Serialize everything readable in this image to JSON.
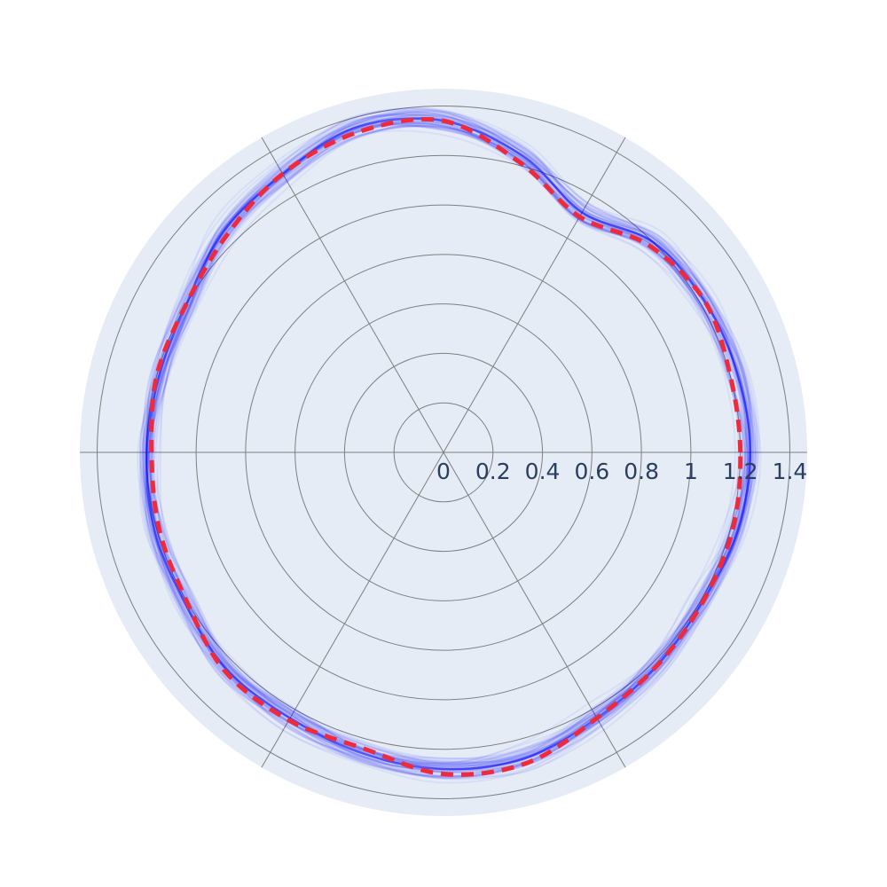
{
  "colors": {
    "polar_background": "#e5ecf6",
    "grid": "#7f7f7f",
    "tick_text": "#2a3f5f",
    "sample_lines": "#0000ff",
    "mean_line": "#ef2a3a"
  },
  "chart_data": {
    "type": "polar-line",
    "radial_axis": {
      "range": [
        0,
        1.47
      ],
      "tick_values": [
        0,
        0.2,
        0.4,
        0.6,
        0.8,
        1,
        1.2,
        1.4
      ],
      "tick_labels": [
        "0",
        "0.2",
        "0.4",
        "0.6",
        "0.8",
        "1",
        "1.2",
        "1.4"
      ],
      "label_angle_deg": 0
    },
    "angular_axis": {
      "spoke_angles_deg": [
        0,
        60,
        120,
        180,
        240,
        300
      ],
      "tick_labels_shown": false
    },
    "grid": true,
    "legend": "none",
    "series": [
      {
        "style": "dashed",
        "color": "#ef2a3a",
        "theta_deg": [
          0,
          15,
          30,
          45,
          60,
          75,
          90,
          105,
          120,
          135,
          150,
          165,
          180,
          195,
          210,
          225,
          240,
          255,
          270,
          285,
          300,
          315,
          330,
          345
        ],
        "r": [
          1.2,
          1.2,
          1.22,
          1.18,
          1.1,
          1.21,
          1.34,
          1.34,
          1.3,
          1.24,
          1.2,
          1.2,
          1.18,
          1.19,
          1.2,
          1.25,
          1.25,
          1.24,
          1.3,
          1.3,
          1.24,
          1.22,
          1.21,
          1.21
        ]
      },
      {
        "style": "solid-ensemble",
        "color": "#0000ff",
        "member_count": 60,
        "theta_deg": [
          0,
          15,
          30,
          45,
          60,
          75,
          90,
          105,
          120,
          135,
          150,
          165,
          180,
          195,
          210,
          225,
          240,
          255,
          270,
          285,
          300,
          315,
          330,
          345
        ],
        "r": [
          1.24,
          1.23,
          1.22,
          1.2,
          1.12,
          1.24,
          1.34,
          1.36,
          1.3,
          1.26,
          1.2,
          1.19,
          1.2,
          1.21,
          1.21,
          1.24,
          1.24,
          1.26,
          1.28,
          1.28,
          1.24,
          1.22,
          1.21,
          1.23
        ]
      }
    ]
  }
}
